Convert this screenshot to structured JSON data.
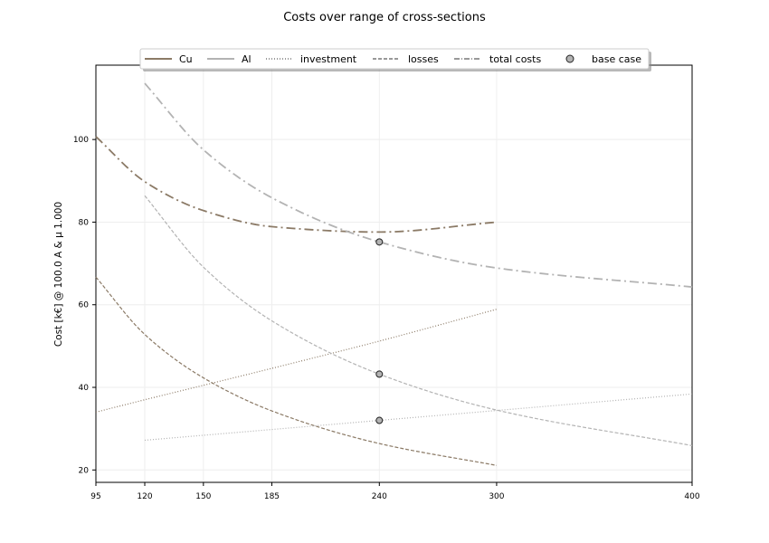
{
  "chart_data": {
    "type": "line",
    "title": "Costs over range of cross-sections",
    "xlabel": "",
    "ylabel": "Cost [k€] @ 100.0 A & μ 1.000",
    "xlim": [
      95,
      400
    ],
    "ylim": [
      17,
      118
    ],
    "xticks": [
      95,
      120,
      150,
      185,
      240,
      300,
      400
    ],
    "yticks": [
      20,
      40,
      60,
      80,
      100
    ],
    "grid": true,
    "legend_position": "top",
    "legend": [
      {
        "label": "Cu",
        "kind": "material",
        "color": "#8b7a66"
      },
      {
        "label": "Al",
        "kind": "material",
        "color": "#b3b3b3"
      },
      {
        "label": "investment",
        "kind": "dotted"
      },
      {
        "label": "losses",
        "kind": "dashed"
      },
      {
        "label": "total costs",
        "kind": "dashdot"
      },
      {
        "label": "base case",
        "kind": "marker"
      }
    ],
    "series": [
      {
        "name": "Cu investment",
        "material": "Cu",
        "style": "dotted",
        "x": [
          95,
          120,
          150,
          185,
          240,
          300
        ],
        "y": [
          34,
          37,
          40.5,
          44.6,
          51.2,
          58.9
        ]
      },
      {
        "name": "Cu losses",
        "material": "Cu",
        "style": "dashed",
        "x": [
          95,
          120,
          150,
          185,
          240,
          300
        ],
        "y": [
          66.7,
          52.8,
          42.3,
          34.3,
          26.4,
          21.1
        ]
      },
      {
        "name": "Cu total costs",
        "material": "Cu",
        "style": "dashdot",
        "x": [
          95,
          120,
          150,
          185,
          240,
          300
        ],
        "y": [
          100.7,
          89.8,
          82.8,
          78.9,
          77.6,
          80
        ]
      },
      {
        "name": "Al investment",
        "material": "Al",
        "style": "dotted",
        "x": [
          120,
          150,
          185,
          240,
          300,
          400
        ],
        "y": [
          27.2,
          28.4,
          29.8,
          32,
          34.4,
          38.4
        ]
      },
      {
        "name": "Al losses",
        "material": "Al",
        "style": "dashed",
        "x": [
          120,
          150,
          185,
          240,
          300,
          400
        ],
        "y": [
          86.4,
          69.1,
          56.1,
          43.2,
          34.5,
          25.9
        ]
      },
      {
        "name": "Al total costs",
        "material": "Al",
        "style": "dashdot",
        "x": [
          120,
          150,
          185,
          240,
          300,
          400
        ],
        "y": [
          113.6,
          97.5,
          85.9,
          75.2,
          68.9,
          64.3
        ]
      }
    ],
    "base_case": {
      "x": 240,
      "y": [
        75.2,
        43.2,
        32
      ]
    }
  }
}
